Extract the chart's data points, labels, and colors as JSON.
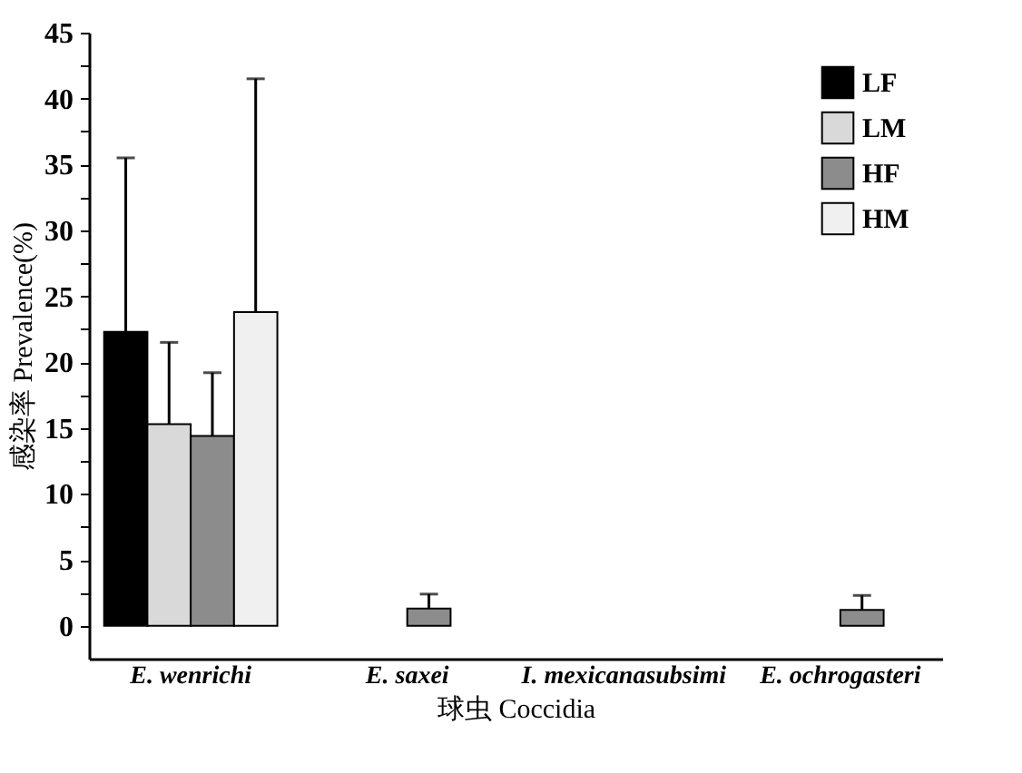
{
  "chart_data": {
    "type": "bar",
    "xlabel": "球虫 Coccidia",
    "ylabel": "感染率 Prevalence(%)",
    "categories": [
      "E. wenrichi",
      "E. saxei",
      "I. mexicanasubsimi",
      "E. ochrogasteri"
    ],
    "series": [
      {
        "name": "LF",
        "color": "#000000",
        "values": [
          22.3,
          0,
          0,
          0
        ],
        "errors": [
          [
            22.3,
            35.5
          ],
          null,
          null,
          null
        ]
      },
      {
        "name": "LM",
        "color": "#d9d9d9",
        "values": [
          15.3,
          0,
          0,
          0
        ],
        "errors": [
          [
            15.3,
            21.5
          ],
          null,
          null,
          null
        ]
      },
      {
        "name": "HF",
        "color": "#8c8c8c",
        "values": [
          14.4,
          1.3,
          0,
          1.2
        ],
        "errors": [
          [
            14.4,
            19.2
          ],
          [
            1.3,
            2.4
          ],
          null,
          [
            1.2,
            2.3
          ]
        ]
      },
      {
        "name": "HM",
        "color": "#f0f0f0",
        "values": [
          23.8,
          0,
          0,
          0
        ],
        "errors": [
          [
            23.8,
            41.5
          ],
          null,
          null,
          null
        ]
      }
    ],
    "ylim": [
      -2.5,
      45
    ],
    "yticks": [
      0,
      {
        "value": 2.5,
        "label": null
      },
      5,
      {
        "value": 7.5,
        "label": null
      },
      10,
      {
        "value": 12.5,
        "label": null
      },
      15,
      {
        "value": 17.5,
        "label": null
      },
      20,
      {
        "value": 22.5,
        "label": null
      },
      25,
      {
        "value": 27.5,
        "label": null
      },
      30,
      {
        "value": 32.5,
        "label": null
      },
      35,
      {
        "value": 37.5,
        "label": null
      },
      40,
      {
        "value": 42.5,
        "label": null
      },
      45
    ],
    "legend": "top right",
    "grid": false
  }
}
